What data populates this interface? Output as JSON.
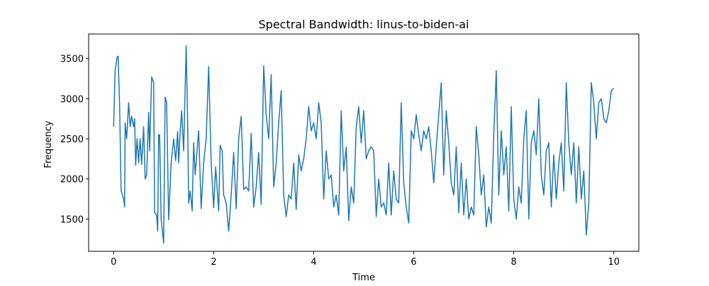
{
  "chart_data": {
    "type": "line",
    "title": "Spectral Bandwidth: linus-to-biden-ai",
    "x_label": "Time",
    "y_label": "Frequency",
    "color": "#1f77b4",
    "xlim": [
      -0.5,
      10.5
    ],
    "ylim": [
      1098,
      3806
    ],
    "xticks": [
      0,
      2,
      4,
      6,
      8,
      10
    ],
    "yticks": [
      1500,
      2000,
      2500,
      3000,
      3500
    ],
    "x": [
      0,
      0.03,
      0.07,
      0.09,
      0.12,
      0.15,
      0.2,
      0.22,
      0.23,
      0.26,
      0.3,
      0.33,
      0.36,
      0.4,
      0.42,
      0.44,
      0.47,
      0.5,
      0.53,
      0.56,
      0.6,
      0.63,
      0.66,
      0.7,
      0.72,
      0.76,
      0.8,
      0.82,
      0.86,
      0.88,
      0.9,
      0.92,
      0.95,
      1.0,
      1.03,
      1.06,
      1.1,
      1.15,
      1.2,
      1.24,
      1.28,
      1.3,
      1.33,
      1.36,
      1.4,
      1.45,
      1.48,
      1.5,
      1.53,
      1.57,
      1.6,
      1.63,
      1.7,
      1.75,
      1.8,
      1.85,
      1.9,
      1.95,
      2.0,
      2.04,
      2.1,
      2.13,
      2.17,
      2.2,
      2.25,
      2.3,
      2.35,
      2.4,
      2.45,
      2.5,
      2.55,
      2.6,
      2.65,
      2.7,
      2.75,
      2.8,
      2.85,
      2.9,
      2.95,
      3.0,
      3.05,
      3.1,
      3.15,
      3.2,
      3.25,
      3.3,
      3.35,
      3.4,
      3.45,
      3.5,
      3.55,
      3.6,
      3.65,
      3.7,
      3.75,
      3.8,
      3.85,
      3.9,
      3.95,
      4.0,
      4.05,
      4.1,
      4.15,
      4.2,
      4.25,
      4.3,
      4.35,
      4.4,
      4.45,
      4.5,
      4.55,
      4.6,
      4.65,
      4.7,
      4.75,
      4.8,
      4.85,
      4.9,
      4.95,
      5.0,
      5.05,
      5.1,
      5.15,
      5.2,
      5.25,
      5.3,
      5.35,
      5.4,
      5.45,
      5.5,
      5.55,
      5.6,
      5.65,
      5.7,
      5.75,
      5.8,
      5.85,
      5.9,
      5.95,
      6.0,
      6.05,
      6.1,
      6.15,
      6.2,
      6.25,
      6.3,
      6.35,
      6.4,
      6.45,
      6.5,
      6.55,
      6.6,
      6.65,
      6.7,
      6.75,
      6.8,
      6.85,
      6.9,
      6.95,
      7.0,
      7.05,
      7.1,
      7.15,
      7.2,
      7.25,
      7.3,
      7.35,
      7.4,
      7.45,
      7.5,
      7.55,
      7.6,
      7.65,
      7.7,
      7.75,
      7.8,
      7.85,
      7.9,
      7.95,
      8.0,
      8.05,
      8.1,
      8.15,
      8.2,
      8.25,
      8.3,
      8.35,
      8.4,
      8.45,
      8.5,
      8.55,
      8.6,
      8.65,
      8.7,
      8.75,
      8.8,
      8.85,
      8.9,
      8.95,
      9.0,
      9.05,
      9.1,
      9.15,
      9.2,
      9.25,
      9.3,
      9.35,
      9.4,
      9.45,
      9.5,
      9.55,
      9.6,
      9.65,
      9.7,
      9.75,
      9.8,
      9.85,
      9.9,
      9.95,
      10.0
    ],
    "values": [
      2650,
      3350,
      3520,
      3530,
      2900,
      1850,
      1750,
      1650,
      2700,
      2500,
      2950,
      2650,
      2780,
      2650,
      2750,
      2170,
      2500,
      2200,
      2500,
      2180,
      2650,
      2000,
      2050,
      2830,
      2350,
      3270,
      3200,
      1580,
      1550,
      1350,
      2550,
      2550,
      1500,
      1200,
      3020,
      2950,
      1490,
      2200,
      2500,
      2230,
      2590,
      2200,
      2580,
      2850,
      2350,
      3660,
      2700,
      1700,
      1850,
      1600,
      2450,
      2050,
      2600,
      1630,
      2200,
      2500,
      3400,
      2200,
      1640,
      2150,
      1600,
      2420,
      2350,
      1800,
      1700,
      1350,
      1800,
      2330,
      1630,
      2500,
      2780,
      1870,
      1900,
      1850,
      2570,
      1650,
      1900,
      2330,
      1680,
      3410,
      2800,
      2500,
      3300,
      1900,
      2200,
      2700,
      3100,
      1800,
      1530,
      1800,
      1750,
      2200,
      1620,
      2300,
      2100,
      2250,
      2500,
      2900,
      2600,
      2700,
      2500,
      2950,
      2700,
      1750,
      2350,
      2000,
      2050,
      1650,
      1800,
      1550,
      2850,
      2100,
      2400,
      1480,
      1900,
      1700,
      2650,
      2900,
      2450,
      2850,
      2250,
      2350,
      2400,
      2350,
      1530,
      2000,
      1650,
      1700,
      1550,
      2200,
      1550,
      2100,
      1750,
      1700,
      2950,
      1950,
      1650,
      1450,
      2600,
      2500,
      2800,
      2550,
      2350,
      2600,
      2500,
      2650,
      2350,
      1950,
      2400,
      2800,
      3200,
      2050,
      2850,
      2450,
      1950,
      1800,
      2400,
      1580,
      2200,
      1550,
      2000,
      1500,
      1650,
      1550,
      2650,
      2300,
      1800,
      2050,
      1400,
      1650,
      1450,
      2550,
      3350,
      1800,
      2600,
      2050,
      2400,
      1600,
      2900,
      1750,
      1500,
      1900,
      1700,
      2500,
      2850,
      1500,
      2450,
      2600,
      2300,
      3000,
      2050,
      1800,
      2350,
      2450,
      1650,
      2300,
      1750,
      2200,
      2450,
      1850,
      3200,
      2450,
      2050,
      2450,
      1700,
      2400,
      1750,
      2100,
      1300,
      1700,
      3200,
      2950,
      2500,
      2950,
      3000,
      2750,
      2700,
      2850,
      3100,
      3130
    ]
  }
}
